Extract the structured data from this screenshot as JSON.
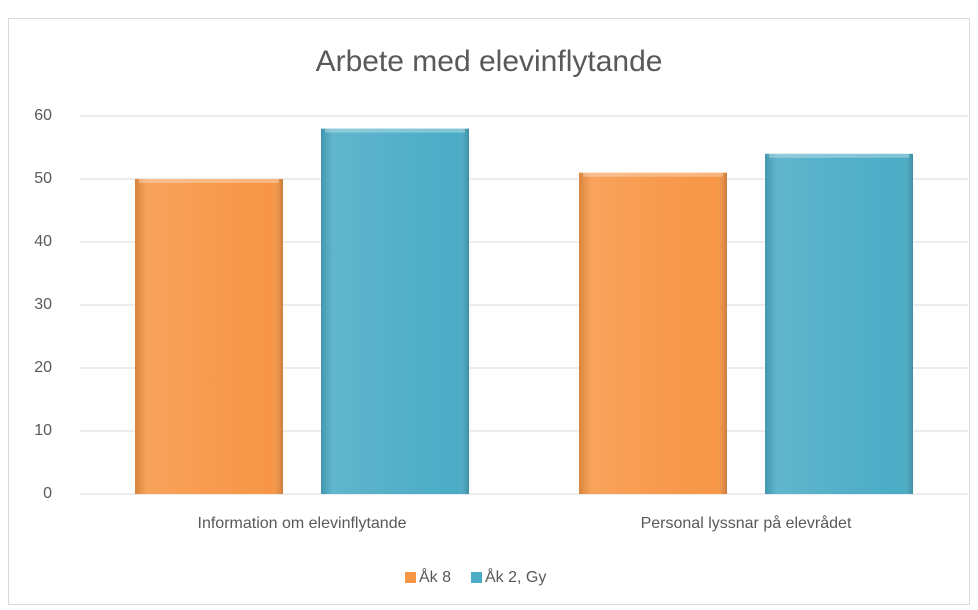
{
  "chart_data": {
    "type": "bar",
    "title": "Arbete med elevinflytande",
    "categories": [
      "Information om elevinflytande",
      "Personal lyssnar på elevrådet"
    ],
    "series": [
      {
        "name": "Åk 8",
        "color": "#f79646",
        "values": [
          50,
          51
        ]
      },
      {
        "name": "Åk 2, Gy",
        "color": "#4bacc6",
        "values": [
          58,
          54
        ]
      }
    ],
    "ylim": [
      0,
      60
    ],
    "yticks": [
      0,
      10,
      20,
      30,
      40,
      50,
      60
    ],
    "grid": true,
    "legend": "bottom"
  }
}
